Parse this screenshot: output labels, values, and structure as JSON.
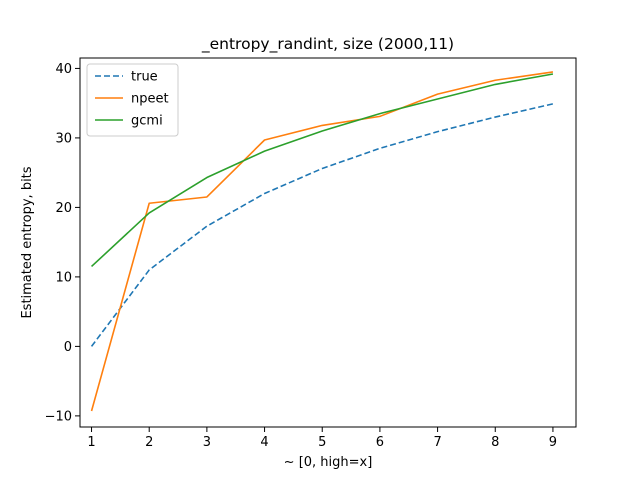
{
  "chart_data": {
    "type": "line",
    "title": "_entropy_randint, size (2000,11)",
    "xlabel": "~ [0, high=x]",
    "ylabel": "Estimated entropy, bits",
    "x": [
      1,
      2,
      3,
      4,
      5,
      6,
      7,
      8,
      9
    ],
    "xlim": [
      0.8,
      9.4
    ],
    "ylim": [
      -11.6,
      41.5
    ],
    "xticks": [
      1,
      2,
      3,
      4,
      5,
      6,
      7,
      8,
      9
    ],
    "yticks": [
      -10,
      0,
      10,
      20,
      30,
      40
    ],
    "grid": false,
    "legend_position": "top-left",
    "series": [
      {
        "name": "true",
        "color": "#1f77b4",
        "style": "dashed",
        "values": [
          0.0,
          11.0,
          17.3,
          22.0,
          25.6,
          28.5,
          30.9,
          33.0,
          34.9
        ]
      },
      {
        "name": "npeet",
        "color": "#ff7f0e",
        "style": "solid",
        "values": [
          -9.3,
          20.6,
          21.5,
          29.7,
          31.8,
          33.1,
          36.3,
          38.3,
          39.5
        ]
      },
      {
        "name": "gcmi",
        "color": "#2ca02c",
        "style": "solid",
        "values": [
          11.5,
          19.2,
          24.3,
          28.1,
          31.0,
          33.5,
          35.6,
          37.7,
          39.2
        ]
      }
    ]
  }
}
